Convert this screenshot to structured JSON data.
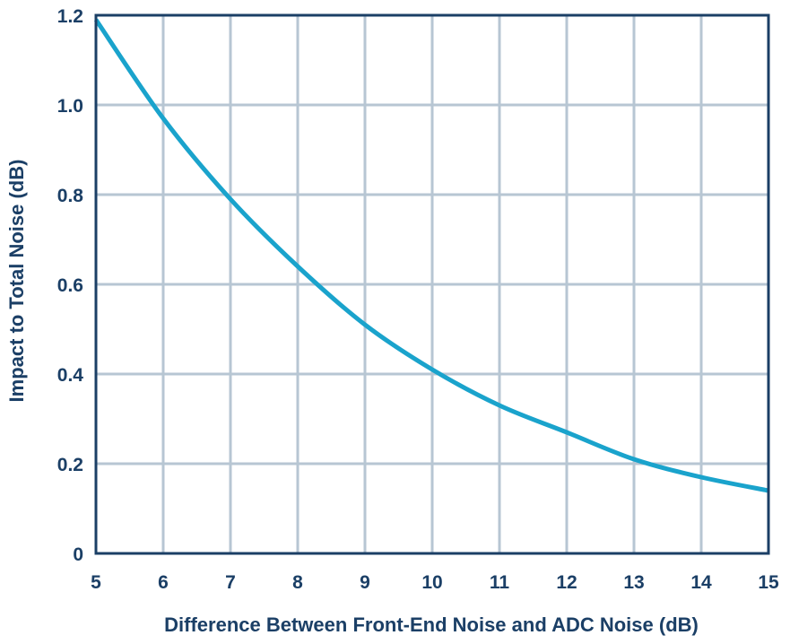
{
  "chart_data": {
    "type": "line",
    "title": "",
    "xlabel": "Difference Between Front-End Noise and ADC Noise (dB)",
    "ylabel": "Impact to Total Noise (dB)",
    "xlim": [
      5,
      15
    ],
    "ylim": [
      0,
      1.2
    ],
    "grid": true,
    "x_ticks": [
      5,
      6,
      7,
      8,
      9,
      10,
      11,
      12,
      13,
      14,
      15
    ],
    "x_tick_labels": [
      "5",
      "6",
      "7",
      "8",
      "9",
      "10",
      "11",
      "12",
      "13",
      "14",
      "15"
    ],
    "y_ticks": [
      0,
      0.2,
      0.4,
      0.6,
      0.8,
      1.0,
      1.2
    ],
    "y_tick_labels": [
      "0",
      "0.2",
      "0.4",
      "0.6",
      "0.8",
      "1.0",
      "1.2"
    ],
    "series": [
      {
        "name": "Impact to Total Noise",
        "x": [
          5,
          6,
          7,
          8,
          9,
          10,
          11,
          12,
          13,
          14,
          15
        ],
        "values": [
          1.19,
          0.97,
          0.79,
          0.64,
          0.51,
          0.41,
          0.33,
          0.27,
          0.21,
          0.17,
          0.14
        ]
      }
    ]
  },
  "colors": {
    "line": "#1aa3cc",
    "grid": "#b7c6d3",
    "frame": "#1b3f66",
    "text": "#1b3f66"
  }
}
